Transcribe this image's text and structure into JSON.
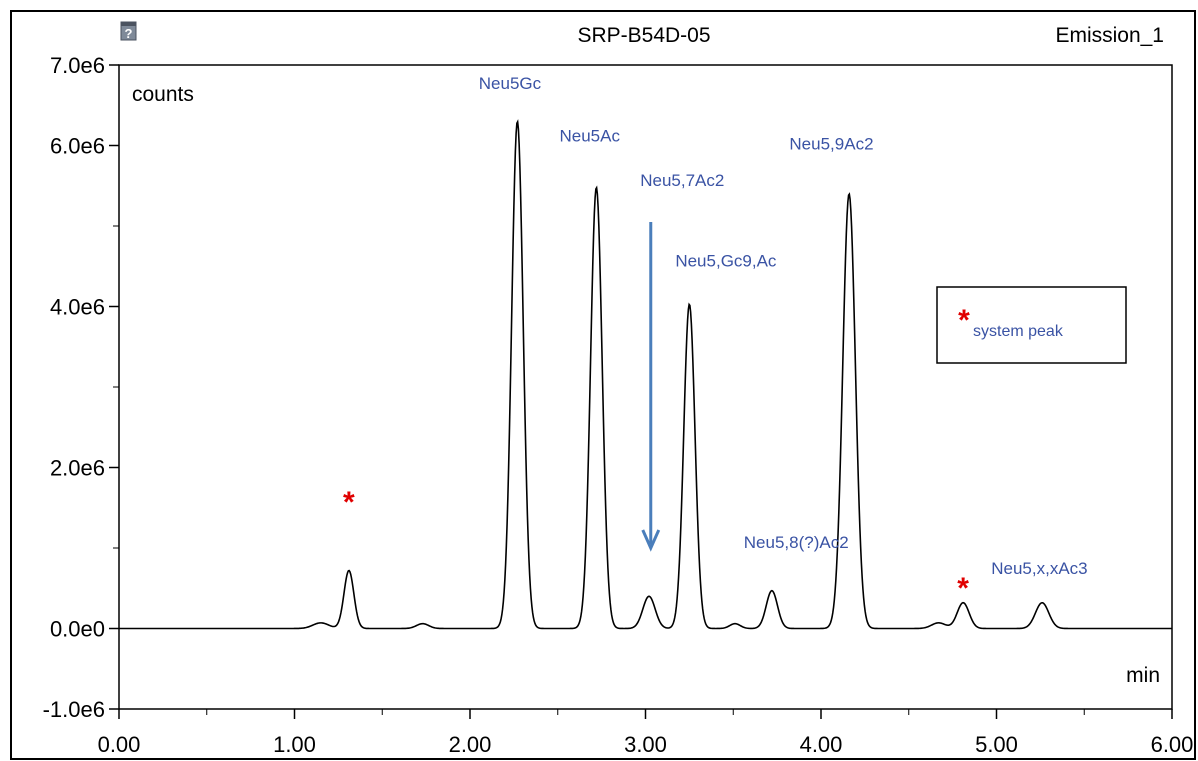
{
  "header": {
    "title": "SRP-B54D-05",
    "channel": "Emission_1",
    "help_icon": "help-icon"
  },
  "chart_data": {
    "type": "line",
    "title": "SRP-B54D-05",
    "xlabel": "min",
    "ylabel": "counts",
    "xlim": [
      0,
      6.0
    ],
    "ylim": [
      -1000000.0,
      7000000.0
    ],
    "x_ticks": [
      0.0,
      1.0,
      2.0,
      3.0,
      4.0,
      5.0,
      6.0
    ],
    "x_tick_labels": [
      "0.00",
      "1.00",
      "2.00",
      "3.00",
      "4.00",
      "5.00",
      "6.00"
    ],
    "y_ticks": [
      -1000000.0,
      0.0,
      2000000.0,
      4000000.0,
      6000000.0,
      7000000.0
    ],
    "y_tick_labels": [
      "-1.0e6",
      "0.0e0",
      "2.0e6",
      "4.0e6",
      "6.0e6",
      "7.0e6"
    ],
    "grid": false,
    "line_color": "#000000",
    "series": [
      {
        "baseline": 0,
        "peaks": [
          {
            "x": 1.15,
            "height": 70000,
            "width": 0.045
          },
          {
            "x": 1.31,
            "height": 720000,
            "width": 0.028
          },
          {
            "x": 1.73,
            "height": 60000,
            "width": 0.035
          },
          {
            "x": 2.27,
            "height": 6300000,
            "width": 0.033
          },
          {
            "x": 2.72,
            "height": 5480000,
            "width": 0.033
          },
          {
            "x": 3.02,
            "height": 400000,
            "width": 0.035
          },
          {
            "x": 3.25,
            "height": 4030000,
            "width": 0.032
          },
          {
            "x": 3.51,
            "height": 60000,
            "width": 0.03
          },
          {
            "x": 3.72,
            "height": 470000,
            "width": 0.032
          },
          {
            "x": 4.16,
            "height": 5400000,
            "width": 0.036
          },
          {
            "x": 4.67,
            "height": 70000,
            "width": 0.04
          },
          {
            "x": 4.81,
            "height": 320000,
            "width": 0.034
          },
          {
            "x": 5.26,
            "height": 320000,
            "width": 0.038
          }
        ]
      }
    ],
    "annotations": [
      {
        "text": "Neu5Gc",
        "x": 2.05,
        "y": 6700000.0,
        "color": "#3a53a4"
      },
      {
        "text": "Neu5Ac",
        "x": 2.51,
        "y": 6050000.0,
        "color": "#3a53a4"
      },
      {
        "text": "Neu5,7Ac2",
        "x": 2.97,
        "y": 5500000.0,
        "color": "#3a53a4"
      },
      {
        "text": "Neu5,Gc9,Ac",
        "x": 3.17,
        "y": 4500000.0,
        "color": "#3a53a4"
      },
      {
        "text": "Neu5,9Ac2",
        "x": 3.82,
        "y": 5950000.0,
        "color": "#3a53a4"
      },
      {
        "text": "Neu5,8(?)Ac2",
        "x": 3.56,
        "y": 1000000.0,
        "color": "#3a53a4"
      },
      {
        "text": "Neu5,x,xAc3",
        "x": 4.97,
        "y": 680000.0,
        "color": "#3a53a4"
      }
    ],
    "system_peak_markers": [
      {
        "x": 1.31,
        "y": 1450000.0,
        "symbol": "*",
        "color": "#e00000"
      },
      {
        "x": 4.81,
        "y": 380000.0,
        "symbol": "*",
        "color": "#e00000"
      }
    ],
    "arrow": {
      "x": 3.03,
      "y_start": 5050000.0,
      "y_end": 1000000.0,
      "color": "#4a7ebb"
    },
    "legend": {
      "placement": "right",
      "symbol": "*",
      "symbol_color": "#e00000",
      "text": "system peak",
      "text_color": "#3a53a4"
    }
  }
}
